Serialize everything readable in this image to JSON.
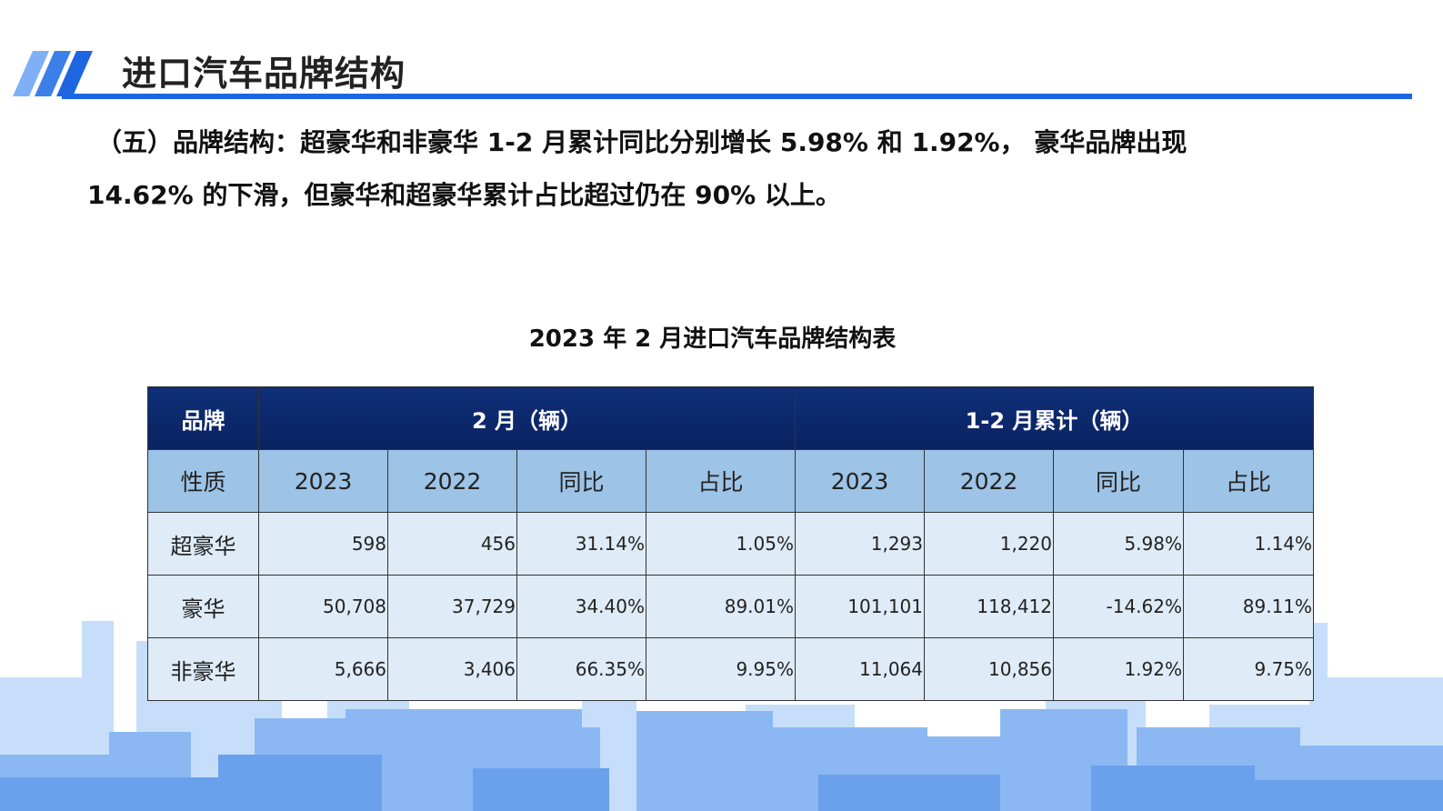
{
  "page": {
    "title": "进口汽车品牌结构",
    "summary_line1": "（五）品牌结构：超豪华和非豪华 1-2 月累计同比分别增长 5.98% 和 1.92%， 豪华品牌出现",
    "summary_line2": "14.62% 的下滑，但豪华和超豪华累计占比超过仍在 90% 以上。"
  },
  "table": {
    "caption": "2023 年 2 月进口汽车品牌结构表",
    "header_row1": {
      "brand": "品牌",
      "group_feb": "2 月（辆）",
      "group_jan_feb": "1-2 月累计（辆）"
    },
    "header_row2": {
      "nature": "性质",
      "feb_2023": "2023",
      "feb_2022": "2022",
      "feb_yoy": "同比",
      "feb_share": "占比",
      "cum_2023": "2023",
      "cum_2022": "2022",
      "cum_yoy": "同比",
      "cum_share": "占比"
    },
    "rows": [
      {
        "name": "超豪华",
        "feb_2023": "598",
        "feb_2022": "456",
        "feb_yoy": "31.14%",
        "feb_share": "1.05%",
        "cum_2023": "1,293",
        "cum_2022": "1,220",
        "cum_yoy": "5.98%",
        "cum_share": "1.14%"
      },
      {
        "name": "豪华",
        "feb_2023": "50,708",
        "feb_2022": "37,729",
        "feb_yoy": "34.40%",
        "feb_share": "89.01%",
        "cum_2023": "101,101",
        "cum_2022": "118,412",
        "cum_yoy": "-14.62%",
        "cum_share": "89.11%"
      },
      {
        "name": "非豪华",
        "feb_2023": "5,666",
        "feb_2022": "3,406",
        "feb_yoy": "66.35%",
        "feb_share": "9.95%",
        "cum_2023": "11,064",
        "cum_2022": "10,856",
        "cum_yoy": "1.92%",
        "cum_share": "9.75%"
      }
    ]
  },
  "colors": {
    "accent_blue": "#1d66e0",
    "header_navy": "#0f2f78",
    "subheader_blue": "#9dc3e6",
    "cell_light": "#dfebf7",
    "skyline_light": "#c5ddf9",
    "skyline_mid": "#6fa4ee"
  }
}
